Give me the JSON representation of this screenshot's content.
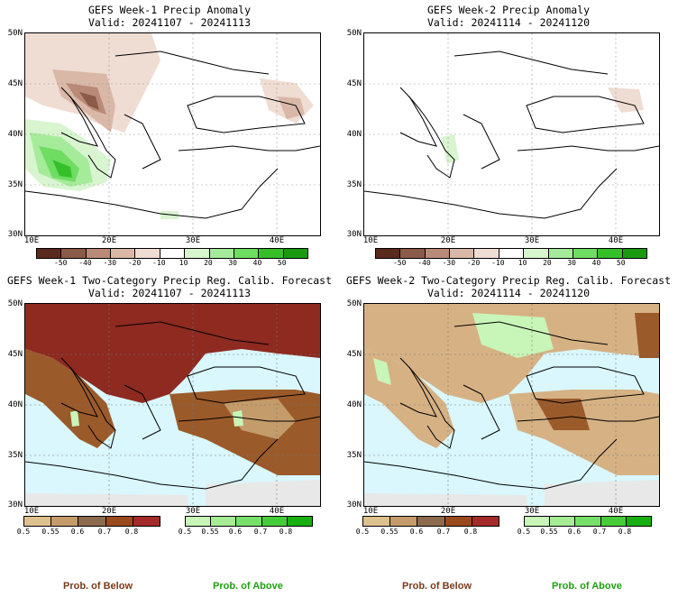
{
  "panels": {
    "p1": {
      "title": "GEFS Week-1 Precip Anomaly",
      "valid": "Valid: 20241107 - 20241113"
    },
    "p2": {
      "title": "GEFS Week-2 Precip Anomaly",
      "valid": "Valid: 20241114 - 20241120"
    },
    "p3": {
      "title": "GEFS Week-1 Two-Category Precip Reg. Calib. Forecast",
      "valid": "Valid: 20241107 - 20241113"
    },
    "p4": {
      "title": "GEFS Week-2 Two-Category Precip Reg. Calib. Forecast",
      "valid": "Valid: 20241114 - 20241120"
    }
  },
  "axes": {
    "lat_labels": [
      "50N",
      "45N",
      "40N",
      "35N",
      "30N"
    ],
    "lon_labels": [
      "10E",
      "20E",
      "30E",
      "40E"
    ]
  },
  "anomaly_colorbar": {
    "ticks": [
      "-50",
      "-40",
      "-30",
      "-20",
      "-10",
      "10",
      "20",
      "30",
      "40",
      "50"
    ],
    "colors": [
      "#5a2a1c",
      "#8b5a48",
      "#b98a77",
      "#d9b8a8",
      "#efdcd2",
      "#ffffff",
      "#d8f5d0",
      "#a6eb9a",
      "#6fdc62",
      "#35c02a",
      "#1a9a10"
    ]
  },
  "prob_colorbars": {
    "below_ticks": [
      "0.5",
      "0.55",
      "0.6",
      "0.7",
      "0.8"
    ],
    "below_colors": [
      "#dcc08e",
      "#c49b6a",
      "#8c6a4e",
      "#9b4a1e",
      "#a52a2a"
    ],
    "above_ticks": [
      "0.5",
      "0.55",
      "0.6",
      "0.7",
      "0.8"
    ],
    "above_colors": [
      "#c8f5b8",
      "#a5ec95",
      "#78e06a",
      "#46cc38",
      "#18b010"
    ]
  },
  "footer": {
    "below_label": "Prob. of Below",
    "above_label": "Prob. of Above"
  },
  "colors": {
    "sea": "#d9f7fd",
    "dry_dark": "#8e2a20",
    "dry_mid": "#9b5a2a",
    "dry_light": "#d6b184",
    "wet_light": "#c8f5b8",
    "grey": "#e8e8e8"
  }
}
